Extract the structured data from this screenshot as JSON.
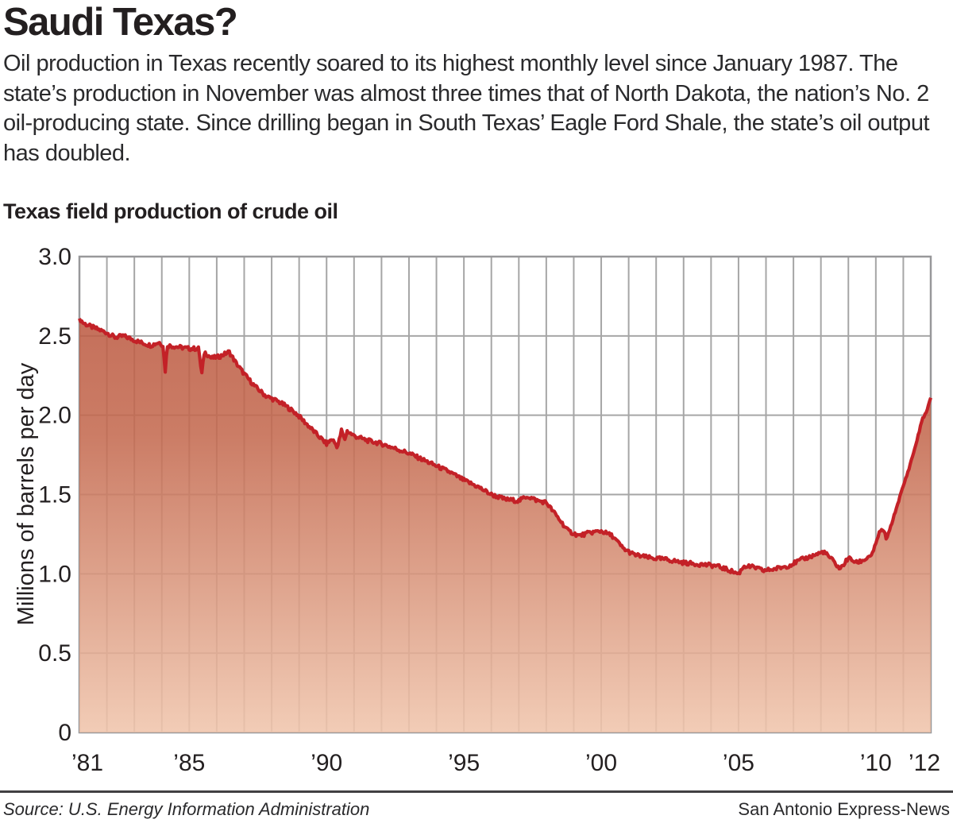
{
  "header": {
    "title": "Saudi Texas?",
    "intro": "Oil production in Texas recently soared to its highest monthly level since January 1987. The state’s production in November was almost three times that of North Dakota, the nation’s No. 2 oil-producing state. Since drilling began in South Texas’ Eagle Ford Shale, the state’s oil output has doubled."
  },
  "footer": {
    "source": "Source: U.S. Energy Information Administration",
    "credit": "San Antonio Express-News"
  },
  "colors": {
    "line": "#c32127",
    "fill_top": "#bd5c44",
    "fill_mid": "#c46a50",
    "fill_bottom": "#f0c5ac",
    "grid": "#a6a6a6",
    "plot_border": "#98989a",
    "text": "#231f20",
    "footer_rule": "#414042"
  },
  "chart_data": {
    "type": "area",
    "title": "Texas field production of crude oil",
    "xlabel": "",
    "ylabel": "Millions of barrels per day",
    "unit": "million barrels per day",
    "xlim": [
      1981,
      2012
    ],
    "ylim": [
      0,
      3.0
    ],
    "grid": "vertical gridlines every 1 year, horizontal every 0.5",
    "legend": "none",
    "y_tick_values": [
      3.0,
      2.5,
      2.0,
      1.5,
      1.0,
      0.5,
      0
    ],
    "y_tick_labels": [
      "3.0",
      "2.5",
      "2.0",
      "1.5",
      "1.0",
      "0.5",
      "0"
    ],
    "x_ticks": [
      {
        "year": 1981,
        "label": "’81"
      },
      {
        "year": 1985,
        "label": "’85"
      },
      {
        "year": 1990,
        "label": "’90"
      },
      {
        "year": 1995,
        "label": "’95"
      },
      {
        "year": 2000,
        "label": "’00"
      },
      {
        "year": 2005,
        "label": "’05"
      },
      {
        "year": 2010,
        "label": "’10"
      },
      {
        "year": 2012,
        "label": "’12"
      }
    ],
    "series": [
      {
        "name": "Texas field production of crude oil",
        "points": [
          [
            1981.0,
            2.61
          ],
          [
            1981.15,
            2.58
          ],
          [
            1981.4,
            2.56
          ],
          [
            1981.7,
            2.54
          ],
          [
            1982.0,
            2.52
          ],
          [
            1982.3,
            2.49
          ],
          [
            1982.6,
            2.5
          ],
          [
            1982.9,
            2.48
          ],
          [
            1983.2,
            2.46
          ],
          [
            1983.6,
            2.44
          ],
          [
            1983.9,
            2.46
          ],
          [
            1984.05,
            2.44
          ],
          [
            1984.12,
            2.27
          ],
          [
            1984.2,
            2.44
          ],
          [
            1984.6,
            2.43
          ],
          [
            1985.0,
            2.42
          ],
          [
            1985.35,
            2.42
          ],
          [
            1985.45,
            2.25
          ],
          [
            1985.55,
            2.4
          ],
          [
            1985.8,
            2.36
          ],
          [
            1986.1,
            2.37
          ],
          [
            1986.45,
            2.4
          ],
          [
            1986.7,
            2.33
          ],
          [
            1987.0,
            2.26
          ],
          [
            1987.4,
            2.18
          ],
          [
            1987.8,
            2.12
          ],
          [
            1988.2,
            2.09
          ],
          [
            1988.5,
            2.06
          ],
          [
            1988.9,
            2.01
          ],
          [
            1989.3,
            1.94
          ],
          [
            1989.7,
            1.87
          ],
          [
            1990.0,
            1.82
          ],
          [
            1990.2,
            1.85
          ],
          [
            1990.4,
            1.8
          ],
          [
            1990.55,
            1.91
          ],
          [
            1990.65,
            1.84
          ],
          [
            1990.75,
            1.9
          ],
          [
            1991.0,
            1.87
          ],
          [
            1991.5,
            1.84
          ],
          [
            1992.0,
            1.82
          ],
          [
            1992.5,
            1.79
          ],
          [
            1993.0,
            1.76
          ],
          [
            1993.5,
            1.72
          ],
          [
            1994.0,
            1.68
          ],
          [
            1994.5,
            1.64
          ],
          [
            1995.0,
            1.59
          ],
          [
            1995.5,
            1.55
          ],
          [
            1996.0,
            1.5
          ],
          [
            1996.5,
            1.47
          ],
          [
            1997.0,
            1.46
          ],
          [
            1997.3,
            1.49
          ],
          [
            1997.7,
            1.46
          ],
          [
            1998.0,
            1.45
          ],
          [
            1998.4,
            1.36
          ],
          [
            1998.8,
            1.27
          ],
          [
            1999.2,
            1.24
          ],
          [
            1999.6,
            1.26
          ],
          [
            2000.0,
            1.27
          ],
          [
            2000.4,
            1.24
          ],
          [
            2000.8,
            1.16
          ],
          [
            2001.2,
            1.12
          ],
          [
            2001.8,
            1.1
          ],
          [
            2002.4,
            1.09
          ],
          [
            2003.0,
            1.07
          ],
          [
            2003.6,
            1.06
          ],
          [
            2004.2,
            1.05
          ],
          [
            2004.7,
            1.02
          ],
          [
            2005.0,
            1.0
          ],
          [
            2005.2,
            1.05
          ],
          [
            2005.6,
            1.04
          ],
          [
            2005.9,
            1.02
          ],
          [
            2006.3,
            1.03
          ],
          [
            2006.8,
            1.05
          ],
          [
            2007.3,
            1.09
          ],
          [
            2007.8,
            1.12
          ],
          [
            2008.1,
            1.14
          ],
          [
            2008.4,
            1.09
          ],
          [
            2008.7,
            1.03
          ],
          [
            2009.0,
            1.1
          ],
          [
            2009.3,
            1.07
          ],
          [
            2009.6,
            1.09
          ],
          [
            2009.9,
            1.13
          ],
          [
            2010.1,
            1.25
          ],
          [
            2010.25,
            1.28
          ],
          [
            2010.4,
            1.22
          ],
          [
            2010.6,
            1.33
          ],
          [
            2010.9,
            1.5
          ],
          [
            2011.2,
            1.66
          ],
          [
            2011.45,
            1.81
          ],
          [
            2011.7,
            1.98
          ],
          [
            2011.85,
            2.02
          ],
          [
            2012.0,
            2.11
          ]
        ]
      }
    ]
  }
}
